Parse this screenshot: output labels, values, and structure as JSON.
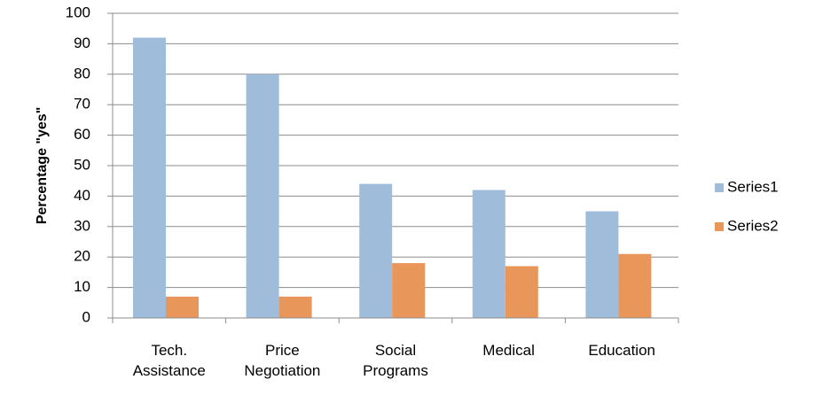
{
  "chart_data": {
    "type": "bar",
    "y_label": "Percentage \"yes\"",
    "categories": [
      "Tech. Assistance",
      "Price Negotiation",
      "Social Programs",
      "Medical",
      "Education"
    ],
    "series": [
      {
        "name": "Series1",
        "color": "#9fbcda",
        "values": [
          92,
          80,
          44,
          42,
          35
        ]
      },
      {
        "name": "Series2",
        "color": "#e8965a",
        "values": [
          7,
          7,
          18,
          17,
          21
        ]
      }
    ],
    "ylim": [
      0,
      100
    ],
    "yticks": [
      0,
      10,
      20,
      30,
      40,
      50,
      60,
      70,
      80,
      90,
      100
    ],
    "grid": true,
    "legend": "right"
  }
}
